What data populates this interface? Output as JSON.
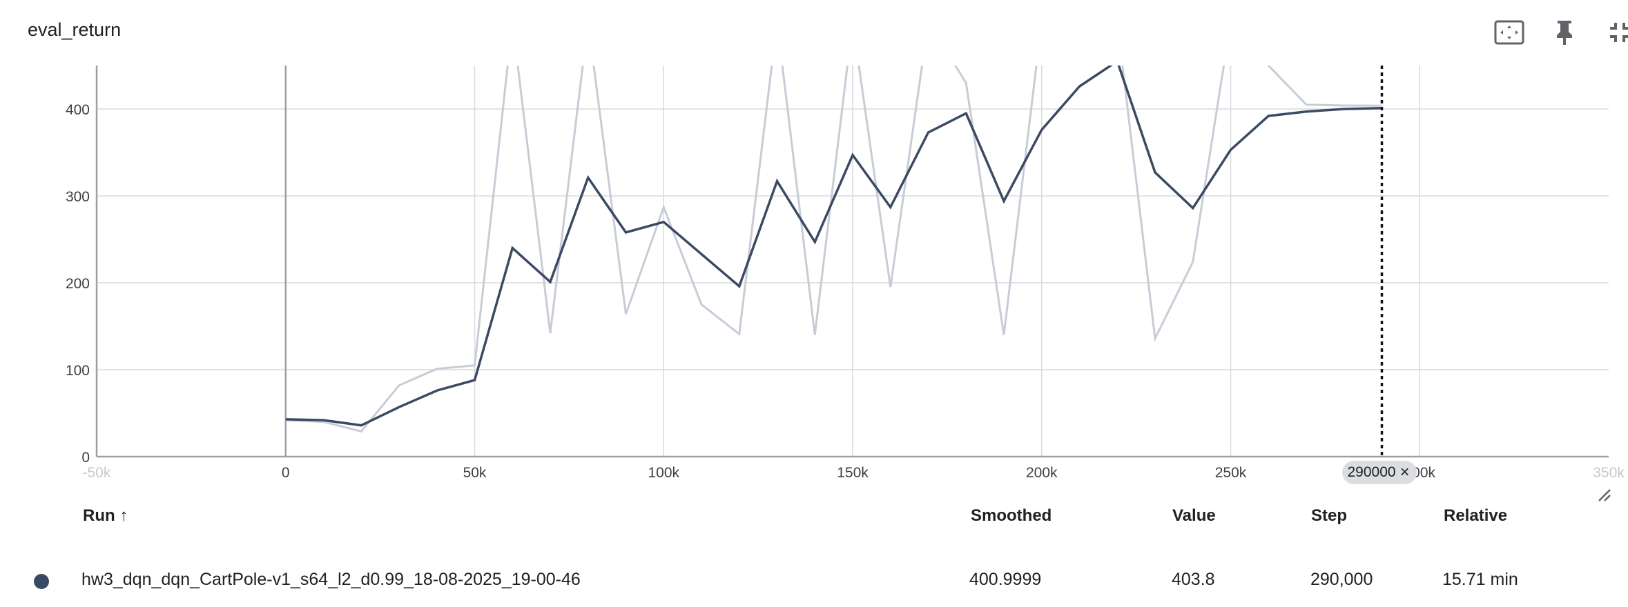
{
  "card": {
    "title": "eval_return",
    "toolbar": [
      {
        "name": "fit-domain-button",
        "icon": "fit-to-data-icon"
      },
      {
        "name": "pin-button",
        "icon": "pin-icon"
      },
      {
        "name": "collapse-button",
        "icon": "collapse-icon"
      },
      {
        "name": "more-button",
        "icon": "more-vert-icon"
      }
    ]
  },
  "chart_data": {
    "type": "line",
    "title": "",
    "xlabel": "",
    "ylabel": "",
    "xlim": [
      -50000,
      350000
    ],
    "ylim": [
      0,
      450
    ],
    "x_ticks": [
      -50000,
      0,
      50000,
      100000,
      150000,
      200000,
      250000,
      300000,
      350000
    ],
    "x_tick_labels": [
      "-50k",
      "0",
      "50k",
      "100k",
      "150k",
      "200k",
      "250k",
      "300k",
      "350k"
    ],
    "y_ticks": [
      0,
      100,
      200,
      300,
      400
    ],
    "y_tick_labels": [
      "0",
      "100",
      "200",
      "300",
      "400"
    ],
    "grid": true,
    "x": [
      0,
      10000,
      20000,
      30000,
      40000,
      50000,
      60000,
      70000,
      80000,
      90000,
      100000,
      110000,
      120000,
      130000,
      140000,
      150000,
      160000,
      170000,
      180000,
      190000,
      200000,
      210000,
      220000,
      230000,
      240000,
      250000,
      260000,
      270000,
      280000,
      290000
    ],
    "series": [
      {
        "role": "raw",
        "color": "#c8ccd6",
        "values": [
          42,
          40,
          29,
          82,
          101,
          105,
          500,
          142,
          500,
          164,
          287,
          175,
          141,
          500,
          140,
          500,
          195,
          500,
          430,
          140,
          500,
          500,
          500,
          136,
          224,
          500,
          450,
          405,
          404,
          403.8
        ]
      },
      {
        "role": "smoothed",
        "color": "#3b4a63",
        "values": [
          43,
          42,
          36,
          57,
          76,
          88,
          240,
          201,
          321,
          258,
          270,
          233,
          196,
          317,
          247,
          347,
          287,
          373,
          395,
          294,
          376,
          426,
          455,
          327,
          286,
          353,
          392,
          397,
          400,
          401
        ]
      }
    ],
    "cursor": {
      "step_label": "290000",
      "x": 290000
    }
  },
  "legend": {
    "headers": {
      "run": "Run ↑",
      "smoothed": "Smoothed",
      "value": "Value",
      "step": "Step",
      "relative": "Relative"
    },
    "rows": [
      {
        "color": "#3b4a63",
        "run": "hw3_dqn_dqn_CartPole-v1_s64_l2_d0.99_18-08-2025_19-00-46",
        "smoothed": "400.9999",
        "value": "403.8",
        "step": "290,000",
        "relative": "15.71 min"
      }
    ]
  }
}
